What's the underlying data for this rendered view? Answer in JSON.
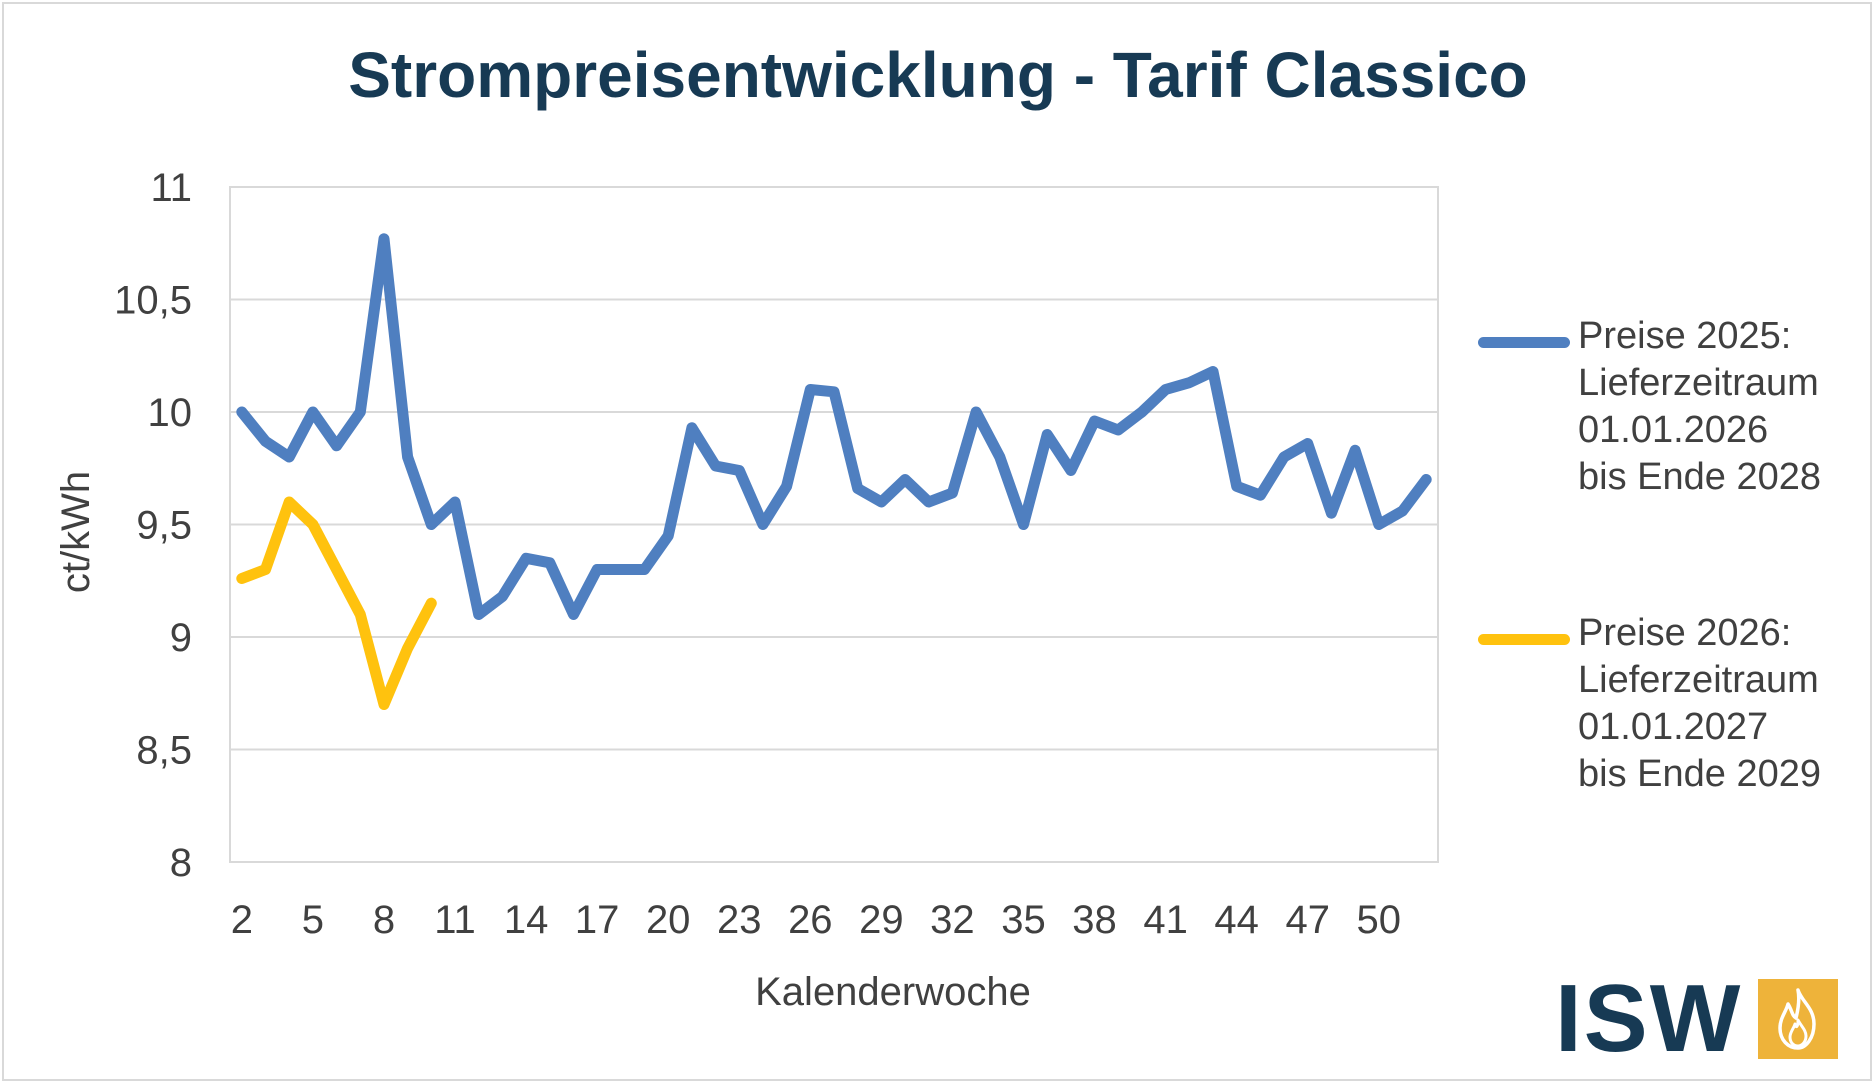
{
  "title": "Strompreisentwicklung - Tarif Classico",
  "colors": {
    "title": "#173a54",
    "series_2025": "#4f7fc0",
    "series_2026": "#ffc20e",
    "logo_accent": "#eeb33a"
  },
  "logo": {
    "text": "ISW",
    "icon": "flame-icon"
  },
  "legend_items": [
    {
      "lines": [
        "Preise 2025:",
        "Lieferzeitraum",
        "01.01.2026",
        "bis Ende 2028"
      ]
    },
    {
      "lines": [
        "Preise 2026:",
        "Lieferzeitraum",
        "01.01.2027",
        "bis Ende 2029"
      ]
    }
  ],
  "chart_data": {
    "type": "line",
    "title": "Strompreisentwicklung - Tarif Classico",
    "xlabel": "Kalenderwoche",
    "ylabel": "ct/kWh",
    "xlim": [
      1.5,
      52.5
    ],
    "ylim": [
      8,
      11
    ],
    "x_ticks": [
      "2",
      "5",
      "8",
      "11",
      "14",
      "17",
      "20",
      "23",
      "26",
      "29",
      "32",
      "35",
      "38",
      "41",
      "44",
      "47",
      "50"
    ],
    "y_ticks": [
      "8",
      "8,5",
      "9",
      "9,5",
      "10",
      "10,5",
      "11"
    ],
    "grid": "horizontal",
    "legend_position": "right",
    "series": [
      {
        "name": "Preise 2025: Lieferzeitraum 01.01.2026 bis Ende 2028",
        "color": "#4f7fc0",
        "x": [
          2,
          3,
          4,
          5,
          6,
          7,
          8,
          9,
          10,
          11,
          12,
          13,
          14,
          15,
          16,
          17,
          18,
          19,
          20,
          21,
          22,
          23,
          24,
          25,
          26,
          27,
          28,
          29,
          30,
          31,
          32,
          33,
          34,
          35,
          36,
          37,
          38,
          39,
          40,
          41,
          42,
          43,
          44,
          45,
          46,
          47,
          48,
          49,
          50,
          51,
          52
        ],
        "values": [
          10.0,
          9.87,
          9.8,
          10.0,
          9.85,
          10.0,
          10.77,
          9.8,
          9.5,
          9.6,
          9.1,
          9.18,
          9.35,
          9.33,
          9.1,
          9.3,
          9.3,
          9.3,
          9.45,
          9.93,
          9.76,
          9.74,
          9.5,
          9.67,
          10.1,
          10.09,
          9.66,
          9.6,
          9.7,
          9.6,
          9.64,
          10.0,
          9.8,
          9.5,
          9.9,
          9.74,
          9.96,
          9.92,
          10.0,
          10.1,
          10.13,
          10.18,
          9.67,
          9.63,
          9.8,
          9.86,
          9.55,
          9.83,
          9.5,
          9.56,
          9.7
        ]
      },
      {
        "name": "Preise 2026: Lieferzeitraum 01.01.2027 bis Ende 2029",
        "color": "#ffc20e",
        "x": [
          2,
          3,
          4,
          5,
          6,
          7,
          8,
          9,
          10
        ],
        "values": [
          9.26,
          9.3,
          9.6,
          9.5,
          9.3,
          9.1,
          8.7,
          8.95,
          9.15
        ]
      }
    ]
  }
}
